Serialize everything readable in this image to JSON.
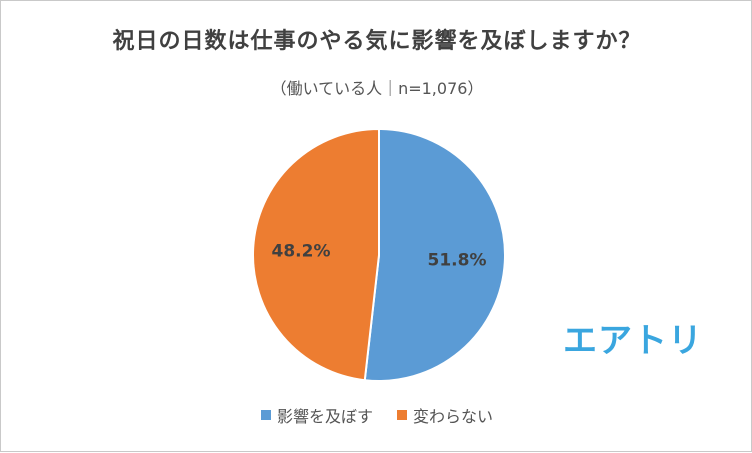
{
  "chart_data": {
    "type": "pie",
    "title": "祝日の日数は仕事のやる気に影響を及ぼしますか？",
    "subtitle": "（働いている人｜n=1,076）",
    "slices": [
      {
        "label": "影響を及ぼす",
        "value": 51.8,
        "display": "51.8%",
        "color": "#5b9bd5"
      },
      {
        "label": "変わらない",
        "value": 48.2,
        "display": "48.2%",
        "color": "#ed7d31"
      }
    ],
    "legend_position": "bottom"
  },
  "logo_text": "エアトリ"
}
